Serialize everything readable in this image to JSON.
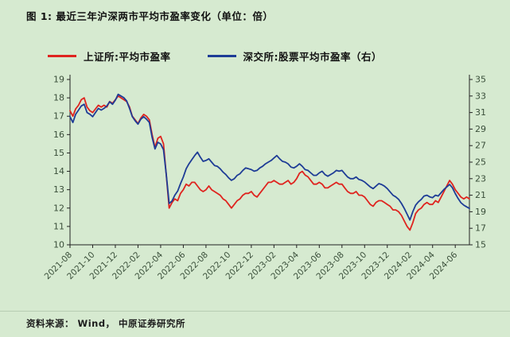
{
  "page": {
    "background": "#d6ead0"
  },
  "header": {
    "title": "图 1: 最近三年沪深两市平均市盈率变化（单位：倍）"
  },
  "footer": {
    "source": "资料来源： Wind， 中原证券研究所"
  },
  "chart_data": {
    "type": "line",
    "title": "图 1: 最近三年沪深两市平均市盈率变化（单位：倍）",
    "xlabel": "",
    "ylabel_left": "",
    "ylabel_right": "",
    "grid": false,
    "legend_position": "top",
    "axis_color": "#222222",
    "tick_color": "#3a4f3a",
    "x_tick_labels": [
      "2021-08",
      "2021-10",
      "2021-12",
      "2022-02",
      "2022-04",
      "2022-06",
      "2022-08",
      "2022-10",
      "2022-12",
      "2023-02",
      "2023-04",
      "2023-06",
      "2023-08",
      "2023-10",
      "2023-12",
      "2024-02",
      "2024-04",
      "2024-06"
    ],
    "points_per_tick": 8,
    "left_axis": {
      "min": 10,
      "max": 19,
      "ticks": [
        10,
        11,
        12,
        13,
        14,
        15,
        16,
        17,
        18,
        19
      ]
    },
    "right_axis": {
      "min": 15,
      "max": 35,
      "ticks": [
        15,
        17,
        19,
        21,
        23,
        25,
        27,
        29,
        31,
        33,
        35
      ]
    },
    "series": [
      {
        "name": "上证所:平均市盈率",
        "axis": "left",
        "color": "#df241f",
        "values": [
          17.3,
          17.0,
          17.4,
          17.6,
          17.9,
          18.0,
          17.5,
          17.3,
          17.2,
          17.4,
          17.6,
          17.5,
          17.6,
          17.5,
          17.8,
          17.7,
          17.9,
          18.1,
          18.0,
          17.9,
          17.8,
          17.5,
          17.0,
          16.8,
          16.6,
          16.9,
          17.1,
          17.0,
          16.8,
          16.0,
          15.3,
          15.8,
          15.9,
          15.5,
          13.8,
          12.0,
          12.3,
          12.5,
          12.4,
          12.8,
          13.0,
          13.3,
          13.2,
          13.4,
          13.4,
          13.2,
          13.0,
          12.9,
          13.0,
          13.2,
          13.0,
          12.9,
          12.8,
          12.7,
          12.5,
          12.4,
          12.2,
          12.0,
          12.2,
          12.4,
          12.5,
          12.7,
          12.8,
          12.8,
          12.9,
          12.7,
          12.6,
          12.8,
          13.0,
          13.2,
          13.4,
          13.4,
          13.5,
          13.4,
          13.3,
          13.3,
          13.4,
          13.5,
          13.3,
          13.4,
          13.6,
          13.9,
          14.0,
          13.8,
          13.7,
          13.5,
          13.3,
          13.3,
          13.4,
          13.3,
          13.1,
          13.1,
          13.2,
          13.3,
          13.4,
          13.3,
          13.3,
          13.1,
          12.9,
          12.8,
          12.8,
          12.9,
          12.7,
          12.7,
          12.6,
          12.4,
          12.2,
          12.1,
          12.3,
          12.4,
          12.4,
          12.3,
          12.2,
          12.1,
          11.9,
          11.9,
          11.8,
          11.6,
          11.3,
          11.0,
          10.8,
          11.2,
          11.7,
          11.9,
          12.0,
          12.2,
          12.3,
          12.2,
          12.2,
          12.4,
          12.3,
          12.6,
          12.9,
          13.2,
          13.5,
          13.3,
          13.0,
          12.8,
          12.6,
          12.5,
          12.6,
          12.5
        ]
      },
      {
        "name": "深交所:股票平均市盈率（右）",
        "axis": "right",
        "color": "#1e3c96",
        "values": [
          30.5,
          29.8,
          30.8,
          31.3,
          31.8,
          32.0,
          31.0,
          30.8,
          30.5,
          31.0,
          31.5,
          31.3,
          31.5,
          31.8,
          32.3,
          32.0,
          32.5,
          33.2,
          33.0,
          32.8,
          32.4,
          31.5,
          30.5,
          30.0,
          29.6,
          30.2,
          30.5,
          30.2,
          29.8,
          28.0,
          26.6,
          27.4,
          27.2,
          26.5,
          23.5,
          20.0,
          20.3,
          21.0,
          21.5,
          22.4,
          23.2,
          24.2,
          24.8,
          25.3,
          25.8,
          26.2,
          25.6,
          25.1,
          25.2,
          25.4,
          25.0,
          24.6,
          24.5,
          24.2,
          23.8,
          23.5,
          23.1,
          22.8,
          23.0,
          23.4,
          23.6,
          24.0,
          24.3,
          24.2,
          24.1,
          23.9,
          24.0,
          24.3,
          24.5,
          24.8,
          25.0,
          25.2,
          25.5,
          25.8,
          25.4,
          25.1,
          25.0,
          24.8,
          24.4,
          24.3,
          24.5,
          24.8,
          24.5,
          24.1,
          24.0,
          23.7,
          23.4,
          23.4,
          23.7,
          23.9,
          23.5,
          23.3,
          23.5,
          23.7,
          24.0,
          23.9,
          24.0,
          23.6,
          23.2,
          23.0,
          23.0,
          23.2,
          22.9,
          22.8,
          22.6,
          22.3,
          22.0,
          21.8,
          22.1,
          22.4,
          22.3,
          22.1,
          21.8,
          21.4,
          21.0,
          20.8,
          20.5,
          20.0,
          19.4,
          18.7,
          18.0,
          19.0,
          19.8,
          20.2,
          20.5,
          20.9,
          21.0,
          20.8,
          20.7,
          21.0,
          20.9,
          21.3,
          21.7,
          22.0,
          22.3,
          21.9,
          21.2,
          20.6,
          20.1,
          19.8,
          19.6,
          19.4
        ]
      }
    ]
  }
}
